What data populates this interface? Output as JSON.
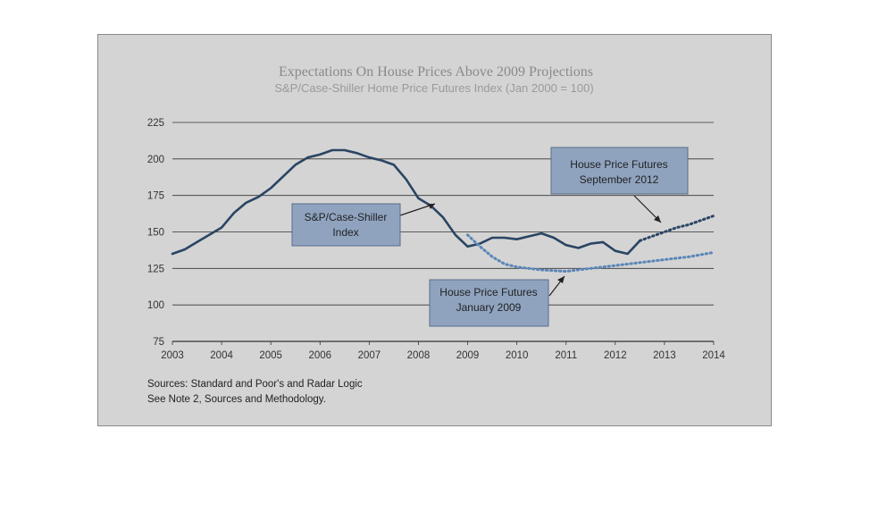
{
  "chart_data": {
    "type": "line",
    "title": "Expectations On House Prices Above 2009 Projections",
    "subtitle": "S&P/Case-Shiller Home Price Futures Index (Jan 2000 = 100)",
    "x_ticks": [
      "2003",
      "2004",
      "2005",
      "2006",
      "2007",
      "2008",
      "2009",
      "2010",
      "2011",
      "2012",
      "2013",
      "2014"
    ],
    "xlim": [
      2003,
      2014
    ],
    "y_ticks": [
      75,
      100,
      125,
      150,
      175,
      200,
      225
    ],
    "ylim": [
      75,
      225
    ],
    "grid": true,
    "series": [
      {
        "name": "S&P/Case-Shiller Index",
        "style": "solid",
        "color": "#2a4563",
        "x": [
          2003.0,
          2003.25,
          2003.5,
          2003.75,
          2004.0,
          2004.25,
          2004.5,
          2004.75,
          2005.0,
          2005.25,
          2005.5,
          2005.75,
          2006.0,
          2006.25,
          2006.5,
          2006.75,
          2007.0,
          2007.25,
          2007.5,
          2007.75,
          2008.0,
          2008.25,
          2008.5,
          2008.75,
          2009.0,
          2009.25,
          2009.5,
          2009.75,
          2010.0,
          2010.25,
          2010.5,
          2010.75,
          2011.0,
          2011.25,
          2011.5,
          2011.75,
          2012.0,
          2012.25,
          2012.5
        ],
        "y": [
          135,
          138,
          143,
          148,
          153,
          163,
          170,
          174,
          180,
          188,
          196,
          201,
          203,
          206,
          206,
          204,
          201,
          199,
          196,
          186,
          173,
          168,
          160,
          148,
          140,
          142,
          146,
          146,
          145,
          147,
          149,
          146,
          141,
          139,
          142,
          143,
          137,
          135,
          144
        ]
      },
      {
        "name": "House Price Futures January 2009",
        "style": "dotted",
        "color": "#5b86b8",
        "x": [
          2009.0,
          2009.25,
          2009.5,
          2009.75,
          2010.0,
          2010.5,
          2011.0,
          2011.5,
          2012.0,
          2012.5,
          2013.0,
          2013.5,
          2014.0
        ],
        "y": [
          148,
          140,
          133,
          128,
          126,
          124,
          123,
          125,
          127,
          129,
          131,
          133,
          136
        ]
      },
      {
        "name": "House Price Futures September 2012",
        "style": "dotted",
        "color": "#2a4563",
        "x": [
          2012.5,
          2012.75,
          2013.0,
          2013.25,
          2013.5,
          2013.75,
          2014.0
        ],
        "y": [
          144,
          147,
          150,
          153,
          155,
          158,
          161
        ]
      }
    ],
    "annotations": [
      {
        "lines": [
          "S&P/Case-Shiller",
          "Index"
        ]
      },
      {
        "lines": [
          "House Price Futures",
          "September 2012"
        ]
      },
      {
        "lines": [
          "House Price Futures",
          "January 2009"
        ]
      }
    ],
    "sources": [
      "Sources:  Standard and Poor's and Radar Logic",
      "See Note 2, Sources and Methodology."
    ]
  }
}
